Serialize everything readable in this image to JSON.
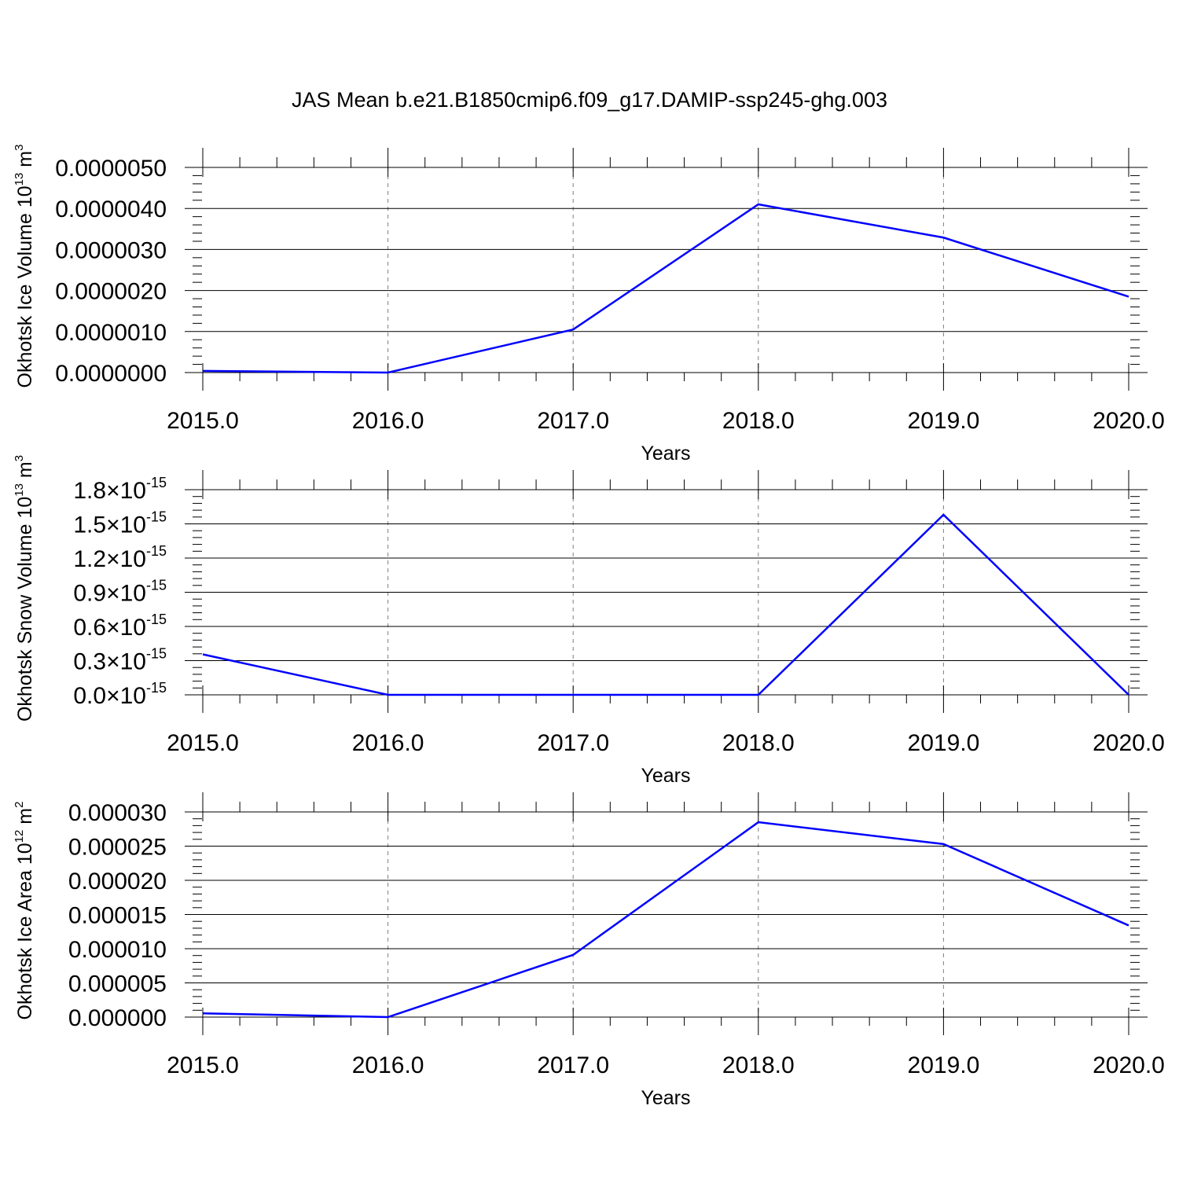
{
  "title": "JAS Mean b.e21.B1850cmip6.f09_g17.DAMIP-ssp245-ghg.003",
  "colors": {
    "series": "#0000ff",
    "axis": "#000000",
    "grid": "#808080"
  },
  "chart_data": [
    {
      "type": "line",
      "ylabel": "Okhotsk Ice Volume",
      "ylabel_unit_base": "10",
      "ylabel_unit_exp": "13",
      "ylabel_unit": "m",
      "ylabel_unit_power": "3",
      "xlabel": "Years",
      "x": [
        2015,
        2016,
        2017,
        2018,
        2019,
        2020
      ],
      "xticks": [
        "2015.0",
        "2016.0",
        "2017.0",
        "2018.0",
        "2019.0",
        "2020.0"
      ],
      "xlim": [
        2015,
        2020
      ],
      "ylim": [
        0,
        5e-06
      ],
      "yticks": [
        {
          "value": 5e-06,
          "label": "0.0000050"
        },
        {
          "value": 4e-06,
          "label": "0.0000040"
        },
        {
          "value": 3e-06,
          "label": "0.0000030"
        },
        {
          "value": 2e-06,
          "label": "0.0000020"
        },
        {
          "value": 1e-06,
          "label": "0.0000010"
        },
        {
          "value": 0,
          "label": "0.0000000"
        }
      ],
      "values": [
        4e-08,
        0.0,
        1.05e-06,
        4.1e-06,
        3.29e-06,
        1.85e-06
      ],
      "grid": "vertical dashed"
    },
    {
      "type": "line",
      "ylabel": "Okhotsk Snow Volume",
      "ylabel_unit_base": "10",
      "ylabel_unit_exp": "13",
      "ylabel_unit": "m",
      "ylabel_unit_power": "3",
      "xlabel": "Years",
      "x": [
        2015,
        2016,
        2017,
        2018,
        2019,
        2020
      ],
      "xticks": [
        "2015.0",
        "2016.0",
        "2017.0",
        "2018.0",
        "2019.0",
        "2020.0"
      ],
      "xlim": [
        2015,
        2020
      ],
      "ylim": [
        0,
        1.8e-15
      ],
      "yticks": [
        {
          "value": 1.8e-15,
          "label": "1.8",
          "label_base": "10",
          "label_exp": "-15"
        },
        {
          "value": 1.5e-15,
          "label": "1.5",
          "label_base": "10",
          "label_exp": "-15"
        },
        {
          "value": 1.2e-15,
          "label": "1.2",
          "label_base": "10",
          "label_exp": "-15"
        },
        {
          "value": 9e-16,
          "label": "0.9",
          "label_base": "10",
          "label_exp": "-15"
        },
        {
          "value": 6e-16,
          "label": "0.6",
          "label_base": "10",
          "label_exp": "-15"
        },
        {
          "value": 3e-16,
          "label": "0.3",
          "label_base": "10",
          "label_exp": "-15"
        },
        {
          "value": 0,
          "label": "0.0",
          "label_base": "10",
          "label_exp": "-15"
        }
      ],
      "values": [
        3.55e-16,
        0.0,
        0.0,
        0.0,
        1.58e-15,
        0.0
      ],
      "grid": "vertical dashed"
    },
    {
      "type": "line",
      "ylabel": "Okhotsk Ice Area",
      "ylabel_unit_base": "10",
      "ylabel_unit_exp": "12",
      "ylabel_unit": "m",
      "ylabel_unit_power": "2",
      "xlabel": "Years",
      "x": [
        2015,
        2016,
        2017,
        2018,
        2019,
        2020
      ],
      "xticks": [
        "2015.0",
        "2016.0",
        "2017.0",
        "2018.0",
        "2019.0",
        "2020.0"
      ],
      "xlim": [
        2015,
        2020
      ],
      "ylim": [
        0,
        3e-05
      ],
      "yticks": [
        {
          "value": 3e-05,
          "label": "0.000030"
        },
        {
          "value": 2.5e-05,
          "label": "0.000025"
        },
        {
          "value": 2e-05,
          "label": "0.000020"
        },
        {
          "value": 1.5e-05,
          "label": "0.000015"
        },
        {
          "value": 1e-05,
          "label": "0.000010"
        },
        {
          "value": 5e-06,
          "label": "0.000005"
        },
        {
          "value": 0,
          "label": "0.000000"
        }
      ],
      "values": [
        5.5e-07,
        0.0,
        9.1e-06,
        2.85e-05,
        2.53e-05,
        1.34e-05
      ],
      "grid": "vertical dashed"
    }
  ]
}
